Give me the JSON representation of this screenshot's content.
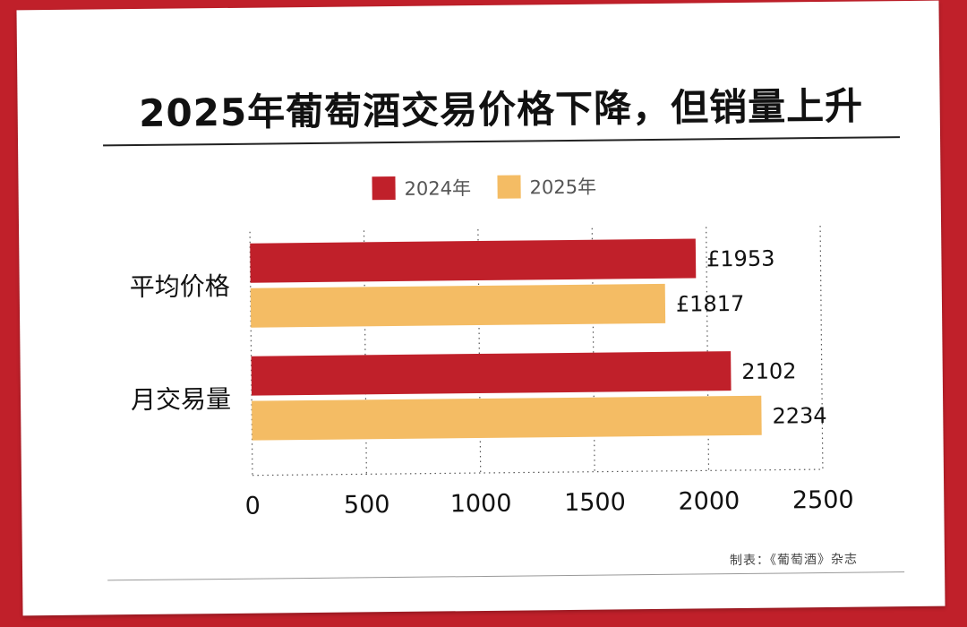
{
  "colors": {
    "page_border": "#c0202a",
    "series_2024": "#c0202a",
    "series_2025": "#f4bc64",
    "text": "#111111"
  },
  "source": "制表：《葡萄酒》杂志",
  "chart_data": {
    "type": "bar",
    "orientation": "horizontal",
    "title": "2025年葡萄酒交易价格下降，但销量上升",
    "categories": [
      "平均价格",
      "月交易量"
    ],
    "series": [
      {
        "name": "2024年",
        "color": "#c0202a",
        "values": [
          1953,
          2102
        ],
        "labels": [
          "£1953",
          "2102"
        ]
      },
      {
        "name": "2025年",
        "color": "#f4bc64",
        "values": [
          1817,
          2234
        ],
        "labels": [
          "£1817",
          "2234"
        ]
      }
    ],
    "xlim": [
      0,
      2500
    ],
    "xticks": [
      "0",
      "500",
      "1000",
      "1500",
      "2000",
      "2500"
    ],
    "xtick_values": [
      0,
      500,
      1000,
      1500,
      2000,
      2500
    ],
    "grid": "vertical dotted",
    "legend_position": "top-center"
  }
}
